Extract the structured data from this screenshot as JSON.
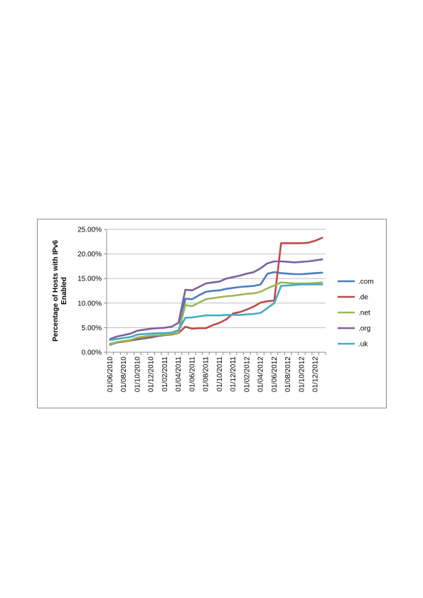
{
  "chart_data": {
    "type": "line",
    "title": "",
    "ylabel_lines": [
      "Percentage of Hosts  with IPv6",
      "Enabled"
    ],
    "xlabel": "",
    "ylim": [
      0,
      0.25
    ],
    "yticks": [
      "0.00%",
      "5.00%",
      "10.00%",
      "15.00%",
      "20.00%",
      "25.00%"
    ],
    "yticks_values": [
      0,
      0.05,
      0.1,
      0.15,
      0.2,
      0.25
    ],
    "grid": "horizontal",
    "legend_position": "right",
    "x_tick_labels": [
      "01/06/2010",
      "01/08/2010",
      "01/10/2010",
      "01/12/2010",
      "01/02/2011",
      "01/04/2011",
      "01/06/2011",
      "01/08/2011",
      "01/10/2011",
      "01/12/2011",
      "01/02/2012",
      "01/04/2012",
      "01/06/2012",
      "01/08/2012",
      "01/10/2012",
      "01/12/2012"
    ],
    "x": [
      "2010-06",
      "2010-07",
      "2010-08",
      "2010-09",
      "2010-10",
      "2010-11",
      "2010-12",
      "2011-01",
      "2011-02",
      "2011-03",
      "2011-04",
      "2011-05",
      "2011-06",
      "2011-07",
      "2011-08",
      "2011-09",
      "2011-10",
      "2011-11",
      "2011-12",
      "2012-01",
      "2012-02",
      "2012-03",
      "2012-04",
      "2012-05",
      "2012-06",
      "2012-07",
      "2012-08",
      "2012-09",
      "2012-10",
      "2012-11",
      "2012-12",
      "2013-01"
    ],
    "series": [
      {
        "name": ".com",
        "color": "#4a7ebb",
        "values": [
          0.017,
          0.02,
          0.022,
          0.024,
          0.026,
          0.028,
          0.03,
          0.033,
          0.035,
          0.037,
          0.04,
          0.109,
          0.108,
          0.116,
          0.123,
          0.125,
          0.126,
          0.129,
          0.131,
          0.133,
          0.134,
          0.135,
          0.138,
          0.16,
          0.163,
          0.161,
          0.16,
          0.159,
          0.159,
          0.16,
          0.161,
          0.162
        ]
      },
      {
        "name": ".de",
        "color": "#be4b48",
        "values": [
          0.015,
          0.02,
          0.022,
          0.024,
          0.028,
          0.03,
          0.032,
          0.034,
          0.035,
          0.036,
          0.039,
          0.052,
          0.048,
          0.049,
          0.049,
          0.055,
          0.06,
          0.067,
          0.079,
          0.082,
          0.087,
          0.093,
          0.101,
          0.104,
          0.105,
          0.222,
          0.222,
          0.222,
          0.222,
          0.223,
          0.227,
          0.233
        ]
      },
      {
        "name": ".net",
        "color": "#98b954",
        "values": [
          0.016,
          0.021,
          0.023,
          0.025,
          0.03,
          0.032,
          0.034,
          0.035,
          0.036,
          0.037,
          0.04,
          0.096,
          0.094,
          0.101,
          0.108,
          0.11,
          0.112,
          0.114,
          0.115,
          0.117,
          0.119,
          0.12,
          0.123,
          0.13,
          0.136,
          0.142,
          0.141,
          0.14,
          0.14,
          0.14,
          0.141,
          0.142
        ]
      },
      {
        "name": ".org",
        "color": "#7d60a0",
        "values": [
          0.027,
          0.032,
          0.035,
          0.038,
          0.044,
          0.046,
          0.048,
          0.049,
          0.05,
          0.052,
          0.06,
          0.127,
          0.126,
          0.133,
          0.14,
          0.142,
          0.144,
          0.15,
          0.153,
          0.156,
          0.16,
          0.163,
          0.171,
          0.181,
          0.185,
          0.185,
          0.184,
          0.183,
          0.184,
          0.185,
          0.187,
          0.189
        ]
      },
      {
        "name": ".uk",
        "color": "#46aac5",
        "values": [
          0.025,
          0.027,
          0.029,
          0.031,
          0.036,
          0.037,
          0.038,
          0.039,
          0.039,
          0.04,
          0.045,
          0.07,
          0.071,
          0.073,
          0.075,
          0.075,
          0.075,
          0.076,
          0.076,
          0.076,
          0.077,
          0.078,
          0.08,
          0.09,
          0.1,
          0.135,
          0.136,
          0.137,
          0.138,
          0.138,
          0.138,
          0.138
        ]
      }
    ]
  }
}
